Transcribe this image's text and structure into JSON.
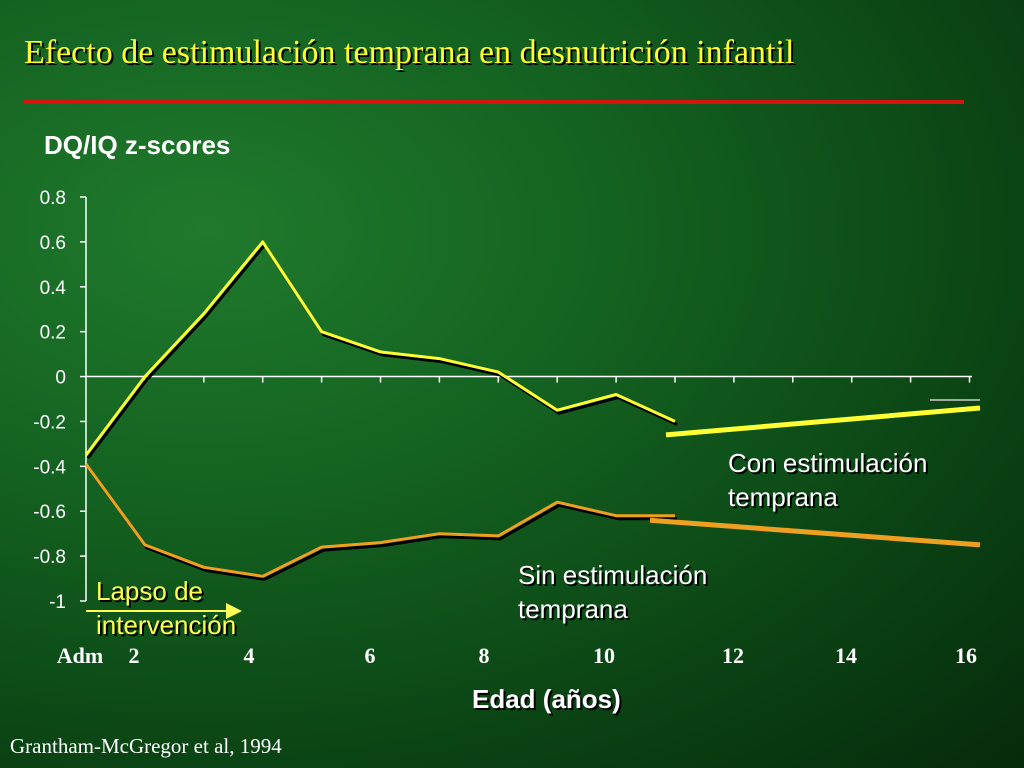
{
  "slide": {
    "title": "Efecto de estimulación temprana en desnutrición infantil",
    "source": "Grantham-McGregor et al, 1994",
    "accent_color": "#d4150f",
    "title_color": "#ffff33"
  },
  "annotations": {
    "con_line1": "Con estimulación",
    "con_line2": "temprana",
    "sin_line1": "Sin estimulación",
    "sin_line2": "temprana",
    "lapso_line1": "Lapso de",
    "lapso_line2": "intervención"
  },
  "chart_data": {
    "type": "line",
    "ylabel": "DQ/IQ z-scores",
    "xlabel": "Edad (años)",
    "ylim": [
      -1,
      0.8
    ],
    "yticks": [
      0.8,
      0.6,
      0.4,
      0.2,
      0,
      -0.2,
      -0.4,
      -0.6,
      -0.8,
      -1
    ],
    "xtick_labels": [
      "Adm",
      "2",
      "4",
      "6",
      "8",
      "10",
      "12",
      "14",
      "16"
    ],
    "grid": false,
    "series": [
      {
        "name": "Con estimulación temprana",
        "color": "#ffff33",
        "points": [
          [
            "Adm",
            -0.35
          ],
          [
            "1",
            0.0
          ],
          [
            "2",
            0.28
          ],
          [
            "3",
            0.6
          ],
          [
            "4",
            0.2
          ],
          [
            "5",
            0.11
          ],
          [
            "6",
            0.08
          ],
          [
            "7",
            0.02
          ],
          [
            "8",
            -0.15
          ],
          [
            "9",
            -0.08
          ],
          [
            "10",
            -0.2
          ]
        ],
        "projection": [
          [
            "10",
            -0.26
          ],
          [
            "16",
            -0.14
          ]
        ]
      },
      {
        "name": "Sin estimulación temprana",
        "color": "#f0a020",
        "points": [
          [
            "Adm",
            -0.39
          ],
          [
            "1",
            -0.75
          ],
          [
            "2",
            -0.85
          ],
          [
            "3",
            -0.89
          ],
          [
            "4",
            -0.76
          ],
          [
            "5",
            -0.74
          ],
          [
            "6",
            -0.7
          ],
          [
            "7",
            -0.71
          ],
          [
            "8",
            -0.56
          ],
          [
            "9",
            -0.62
          ],
          [
            "10",
            -0.62
          ]
        ],
        "projection": [
          [
            "10",
            -0.64
          ],
          [
            "16",
            -0.75
          ]
        ]
      }
    ]
  }
}
